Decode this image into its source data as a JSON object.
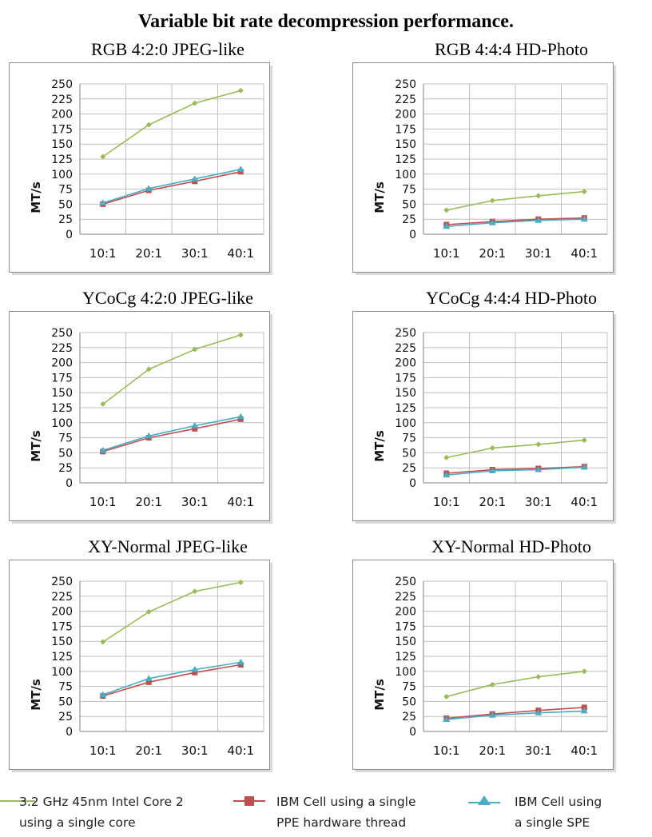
{
  "title": "Variable bit rate decompression performance.",
  "colors": {
    "intel": "#9bbb59",
    "ppe": "#c0504d",
    "spe": "#4bacc6"
  },
  "legend": [
    {
      "label": "3.2 GHz 45nm Intel Core 2\nusing a single core",
      "color": "#9bbb59",
      "marker": "diamond"
    },
    {
      "label": "IBM Cell using a single\nPPE hardware thread",
      "color": "#c0504d",
      "marker": "square"
    },
    {
      "label": "IBM Cell using\na single SPE",
      "color": "#4bacc6",
      "marker": "triangle"
    }
  ],
  "chart_data": [
    {
      "type": "line",
      "title": "RGB 4:2:0 JPEG-like",
      "ylabel": "MT/s",
      "categories": [
        "10:1",
        "20:1",
        "30:1",
        "40:1"
      ],
      "yticks": [
        "0",
        "25",
        "50",
        "75",
        "100",
        "125",
        "150",
        "175",
        "200",
        "225",
        "250"
      ],
      "ylim": [
        0,
        250
      ],
      "grid": true,
      "series": [
        {
          "name": "3.2 GHz 45nm Intel Core 2 using a single core",
          "values": [
            129,
            182,
            218,
            239
          ]
        },
        {
          "name": "IBM Cell using a single PPE hardware thread",
          "values": [
            50,
            73,
            88,
            104
          ]
        },
        {
          "name": "IBM Cell using a single SPE",
          "values": [
            52,
            76,
            92,
            108
          ]
        }
      ]
    },
    {
      "type": "line",
      "title": "RGB 4:4:4 HD-Photo",
      "ylabel": "MT/s",
      "categories": [
        "10:1",
        "20:1",
        "30:1",
        "40:1"
      ],
      "yticks": [
        "0",
        "25",
        "50",
        "75",
        "100",
        "125",
        "150",
        "175",
        "200",
        "225",
        "250"
      ],
      "ylim": [
        0,
        250
      ],
      "grid": true,
      "series": [
        {
          "name": "3.2 GHz 45nm Intel Core 2 using a single core",
          "values": [
            40,
            56,
            64,
            71
          ]
        },
        {
          "name": "IBM Cell using a single PPE hardware thread",
          "values": [
            16,
            21,
            25,
            27
          ]
        },
        {
          "name": "IBM Cell using a single SPE",
          "values": [
            13,
            19,
            23,
            25
          ]
        }
      ]
    },
    {
      "type": "line",
      "title": "YCoCg 4:2:0 JPEG-like",
      "ylabel": "MT/s",
      "categories": [
        "10:1",
        "20:1",
        "30:1",
        "40:1"
      ],
      "yticks": [
        "0",
        "25",
        "50",
        "75",
        "100",
        "125",
        "150",
        "175",
        "200",
        "225",
        "250"
      ],
      "ylim": [
        0,
        250
      ],
      "grid": true,
      "series": [
        {
          "name": "3.2 GHz 45nm Intel Core 2 using a single core",
          "values": [
            131,
            189,
            222,
            246
          ]
        },
        {
          "name": "IBM Cell using a single PPE hardware thread",
          "values": [
            52,
            75,
            90,
            106
          ]
        },
        {
          "name": "IBM Cell using a single SPE",
          "values": [
            54,
            78,
            95,
            110
          ]
        }
      ]
    },
    {
      "type": "line",
      "title": "YCoCg 4:4:4 HD-Photo",
      "ylabel": "MT/s",
      "categories": [
        "10:1",
        "20:1",
        "30:1",
        "40:1"
      ],
      "yticks": [
        "0",
        "25",
        "50",
        "75",
        "100",
        "125",
        "150",
        "175",
        "200",
        "225",
        "250"
      ],
      "ylim": [
        0,
        250
      ],
      "grid": true,
      "series": [
        {
          "name": "3.2 GHz 45nm Intel Core 2 using a single core",
          "values": [
            42,
            58,
            64,
            71
          ]
        },
        {
          "name": "IBM Cell using a single PPE hardware thread",
          "values": [
            16,
            22,
            24,
            27
          ]
        },
        {
          "name": "IBM Cell using a single SPE",
          "values": [
            13,
            20,
            22,
            26
          ]
        }
      ]
    },
    {
      "type": "line",
      "title": "XY-Normal JPEG-like",
      "ylabel": "MT/s",
      "categories": [
        "10:1",
        "20:1",
        "30:1",
        "40:1"
      ],
      "yticks": [
        "0",
        "25",
        "50",
        "75",
        "100",
        "125",
        "150",
        "175",
        "200",
        "225",
        "250"
      ],
      "ylim": [
        0,
        250
      ],
      "grid": true,
      "series": [
        {
          "name": "3.2 GHz 45nm Intel Core 2 using a single core",
          "values": [
            149,
            199,
            233,
            248
          ]
        },
        {
          "name": "IBM Cell using a single PPE hardware thread",
          "values": [
            59,
            82,
            98,
            111
          ]
        },
        {
          "name": "IBM Cell using a single SPE",
          "values": [
            61,
            88,
            103,
            115
          ]
        }
      ]
    },
    {
      "type": "line",
      "title": "XY-Normal HD-Photo",
      "ylabel": "MT/s",
      "categories": [
        "10:1",
        "20:1",
        "30:1",
        "40:1"
      ],
      "yticks": [
        "0",
        "25",
        "50",
        "75",
        "100",
        "125",
        "150",
        "175",
        "200",
        "225",
        "250"
      ],
      "ylim": [
        0,
        250
      ],
      "grid": true,
      "series": [
        {
          "name": "3.2 GHz 45nm Intel Core 2 using a single core",
          "values": [
            58,
            78,
            91,
            100
          ]
        },
        {
          "name": "IBM Cell using a single PPE hardware thread",
          "values": [
            22,
            29,
            35,
            40
          ]
        },
        {
          "name": "IBM Cell using a single SPE",
          "values": [
            20,
            27,
            31,
            34
          ]
        }
      ]
    }
  ]
}
